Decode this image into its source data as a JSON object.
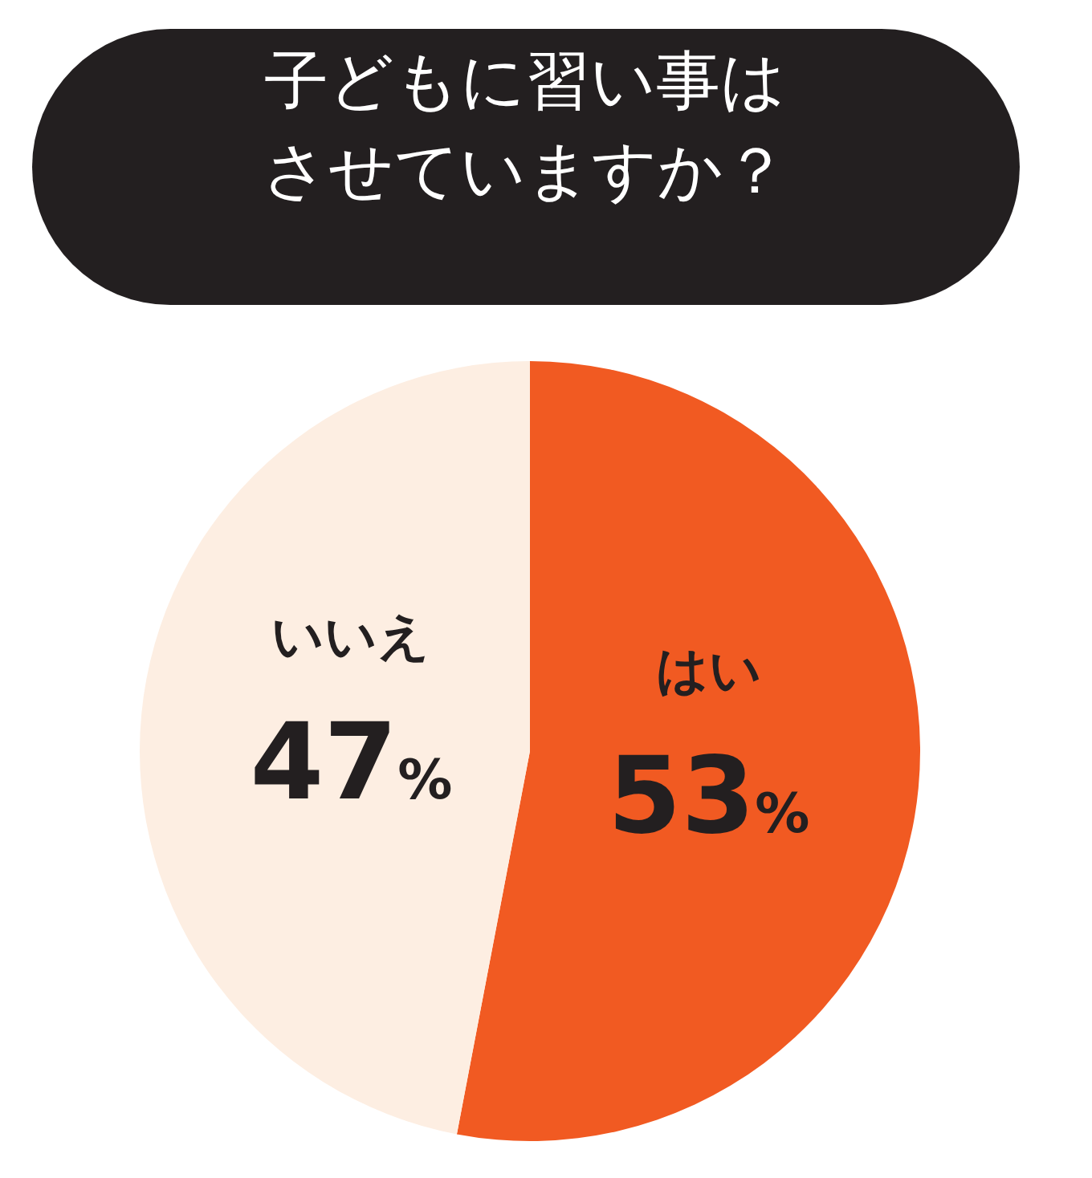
{
  "chart_data": {
    "type": "pie",
    "title": "子どもに習い事はさせていますか？",
    "categories": [
      "はい",
      "いいえ"
    ],
    "values": [
      53,
      47
    ],
    "colors": [
      "#f15a22",
      "#fdeee2"
    ],
    "value_labels": [
      "53%",
      "47%"
    ]
  }
}
